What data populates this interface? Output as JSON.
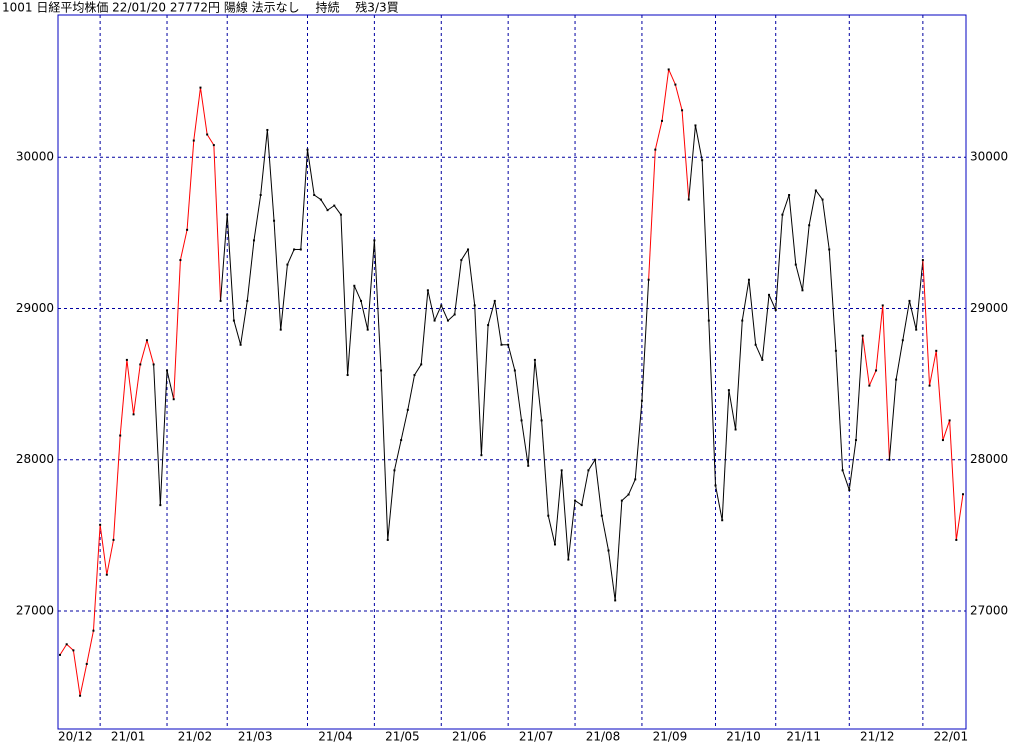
{
  "chart_data": {
    "type": "line",
    "title": "1001 日経平均株価 22/01/20 27772円 陽線 法示なし　 持続　 残3/3買",
    "ylim": [
      26220,
      30940
    ],
    "yticks": [
      27000,
      28000,
      29000,
      30000
    ],
    "grid": true,
    "categories": [
      "20/12",
      null,
      null,
      null,
      null,
      null,
      "21/01",
      null,
      null,
      null,
      null,
      null,
      null,
      null,
      null,
      null,
      "21/02",
      null,
      null,
      null,
      null,
      null,
      null,
      null,
      null,
      "21/03",
      null,
      null,
      null,
      null,
      null,
      null,
      null,
      null,
      null,
      null,
      null,
      "21/04",
      null,
      null,
      null,
      null,
      null,
      null,
      null,
      null,
      null,
      "21/05",
      null,
      null,
      null,
      null,
      null,
      null,
      null,
      null,
      null,
      "21/06",
      null,
      null,
      null,
      null,
      null,
      null,
      null,
      null,
      null,
      "21/07",
      null,
      null,
      null,
      null,
      null,
      null,
      null,
      null,
      null,
      "21/08",
      null,
      null,
      null,
      null,
      null,
      null,
      null,
      null,
      null,
      "21/09",
      null,
      null,
      null,
      null,
      null,
      null,
      null,
      null,
      null,
      null,
      "21/10",
      null,
      null,
      null,
      null,
      null,
      null,
      null,
      null,
      "21/11",
      null,
      null,
      null,
      null,
      null,
      null,
      null,
      null,
      null,
      null,
      "21/12",
      null,
      null,
      null,
      null,
      null,
      null,
      null,
      null,
      null,
      null,
      "22/01",
      null,
      null,
      null,
      null,
      null,
      null
    ],
    "series": [
      {
        "name": "日経平均株価",
        "values": [
          26710,
          26780,
          26740,
          26440,
          26650,
          26870,
          27570,
          27240,
          27470,
          28160,
          28660,
          28300,
          28630,
          28790,
          28630,
          27700,
          28590,
          28400,
          29320,
          29520,
          30110,
          30460,
          30150,
          30080,
          29050,
          29620,
          28920,
          28760,
          29050,
          29450,
          29750,
          30180,
          29580,
          28860,
          29290,
          29390,
          29390,
          30050,
          29750,
          29720,
          29650,
          29680,
          29620,
          28560,
          29150,
          29050,
          28860,
          29450,
          28590,
          27470,
          27930,
          28130,
          28330,
          28560,
          28630,
          29120,
          28920,
          29020,
          28920,
          28960,
          29320,
          29390,
          29020,
          28030,
          28890,
          29050,
          28760,
          28760,
          28590,
          28260,
          27960,
          28660,
          28260,
          27630,
          27440,
          27930,
          27340,
          27730,
          27700,
          27930,
          28000,
          27630,
          27400,
          27070,
          27730,
          27770,
          27870,
          28390,
          29190,
          30050,
          30240,
          30580,
          30480,
          30310,
          29720,
          30210,
          29980,
          28920,
          27830,
          27600,
          28460,
          28200,
          28920,
          29190,
          28760,
          28660,
          29090,
          28990,
          29620,
          29750,
          29290,
          29120,
          29550,
          29780,
          29720,
          29390,
          28720,
          27930,
          27800,
          28130,
          28820,
          28490,
          28590,
          29020,
          28000,
          28530,
          28790,
          29050,
          28860,
          29320,
          28490,
          28720,
          28130,
          28260,
          27470,
          27772
        ],
        "colors": [
          "#ff0000",
          "#ff0000",
          "#ff0000",
          "#ff0000",
          "#ff0000",
          "#ff0000",
          "#ff0000",
          "#ff0000",
          "#ff0000",
          "#ff0000",
          "#ff0000",
          "#ff0000",
          "#ff0000",
          "#ff0000",
          "#000000",
          "#000000",
          "#000000",
          "#ff0000",
          "#ff0000",
          "#ff0000",
          "#ff0000",
          "#ff0000",
          "#ff0000",
          "#ff0000",
          "#000000",
          "#000000",
          "#000000",
          "#000000",
          "#000000",
          "#000000",
          "#000000",
          "#000000",
          "#000000",
          "#000000",
          "#000000",
          "#000000",
          "#000000",
          "#000000",
          "#000000",
          "#000000",
          "#000000",
          "#000000",
          "#000000",
          "#000000",
          "#000000",
          "#000000",
          "#000000",
          "#000000",
          "#000000",
          "#000000",
          "#000000",
          "#000000",
          "#000000",
          "#000000",
          "#000000",
          "#000000",
          "#000000",
          "#000000",
          "#000000",
          "#000000",
          "#000000",
          "#000000",
          "#000000",
          "#000000",
          "#000000",
          "#000000",
          "#000000",
          "#000000",
          "#000000",
          "#000000",
          "#000000",
          "#000000",
          "#000000",
          "#000000",
          "#000000",
          "#000000",
          "#000000",
          "#000000",
          "#000000",
          "#000000",
          "#000000",
          "#000000",
          "#000000",
          "#000000",
          "#000000",
          "#000000",
          "#000000",
          "#000000",
          "#ff0000",
          "#ff0000",
          "#ff0000",
          "#ff0000",
          "#ff0000",
          "#ff0000",
          "#000000",
          "#000000",
          "#000000",
          "#000000",
          "#000000",
          "#000000",
          "#000000",
          "#000000",
          "#000000",
          "#000000",
          "#000000",
          "#000000",
          "#000000",
          "#000000",
          "#000000",
          "#000000",
          "#000000",
          "#000000",
          "#000000",
          "#000000",
          "#000000",
          "#000000",
          "#000000",
          "#000000",
          "#000000",
          "#000000",
          "#ff0000",
          "#ff0000",
          "#ff0000",
          "#ff0000",
          "#000000",
          "#000000",
          "#000000",
          "#000000",
          "#000000",
          "#ff0000",
          "#ff0000",
          "#ff0000",
          "#ff0000",
          "#ff0000",
          "#ff0000",
          "#ff0000"
        ]
      }
    ]
  }
}
